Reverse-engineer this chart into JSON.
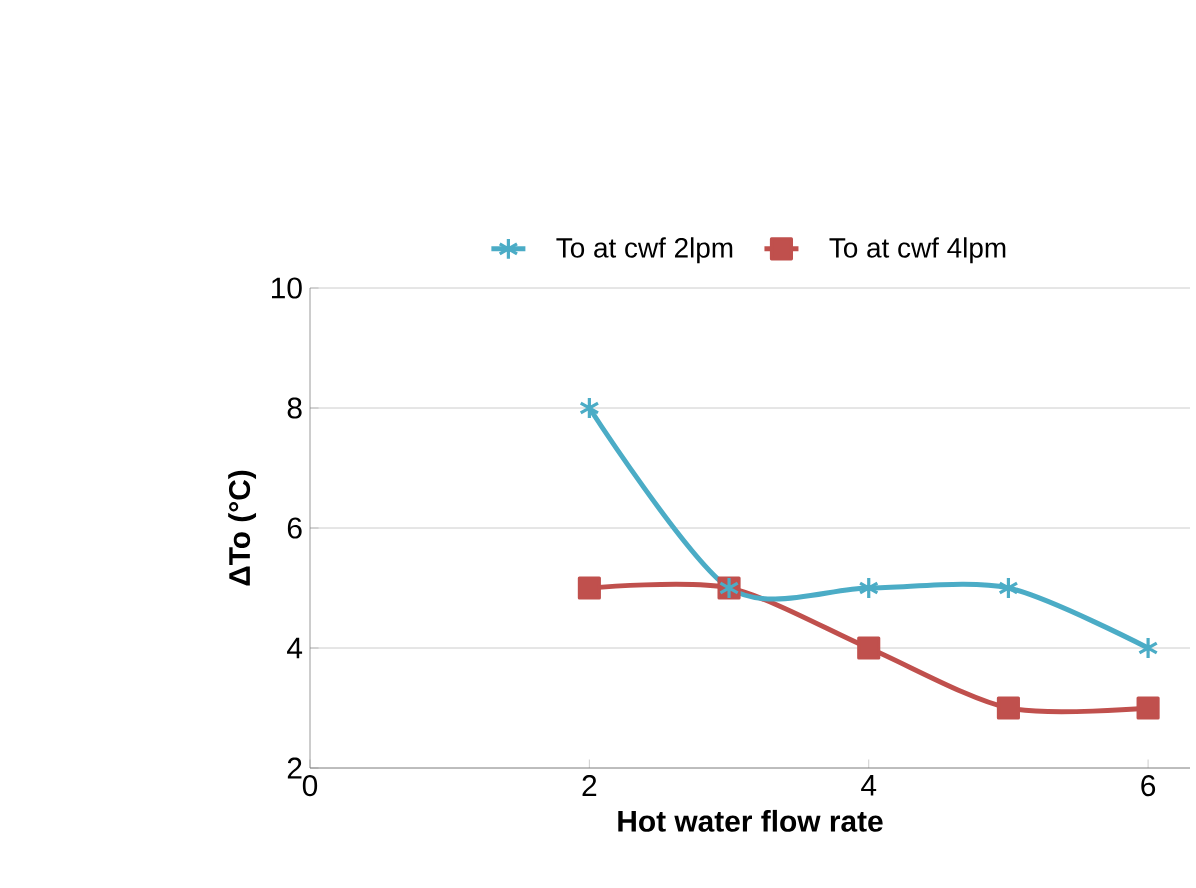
{
  "chart_data": {
    "type": "line",
    "xlabel": "Hot water flow rate",
    "ylabel": "ΔTo  (°C)",
    "xlim": [
      0,
      6.3
    ],
    "xticks": [
      0,
      2,
      4,
      6
    ],
    "ylim": [
      2,
      10
    ],
    "yticks": [
      2,
      4,
      6,
      8,
      10
    ],
    "grid": "y",
    "legend": "top",
    "x": [
      2,
      3,
      4,
      5,
      6
    ],
    "series": [
      {
        "name": "To at cwf 2lpm",
        "color": "#4bacc6",
        "marker": "cross",
        "values": [
          8,
          5,
          5,
          5,
          4
        ]
      },
      {
        "name": "To at cwf 4lpm",
        "color": "#c0504d",
        "marker": "square",
        "values": [
          5,
          5,
          4,
          3,
          3
        ]
      }
    ]
  }
}
